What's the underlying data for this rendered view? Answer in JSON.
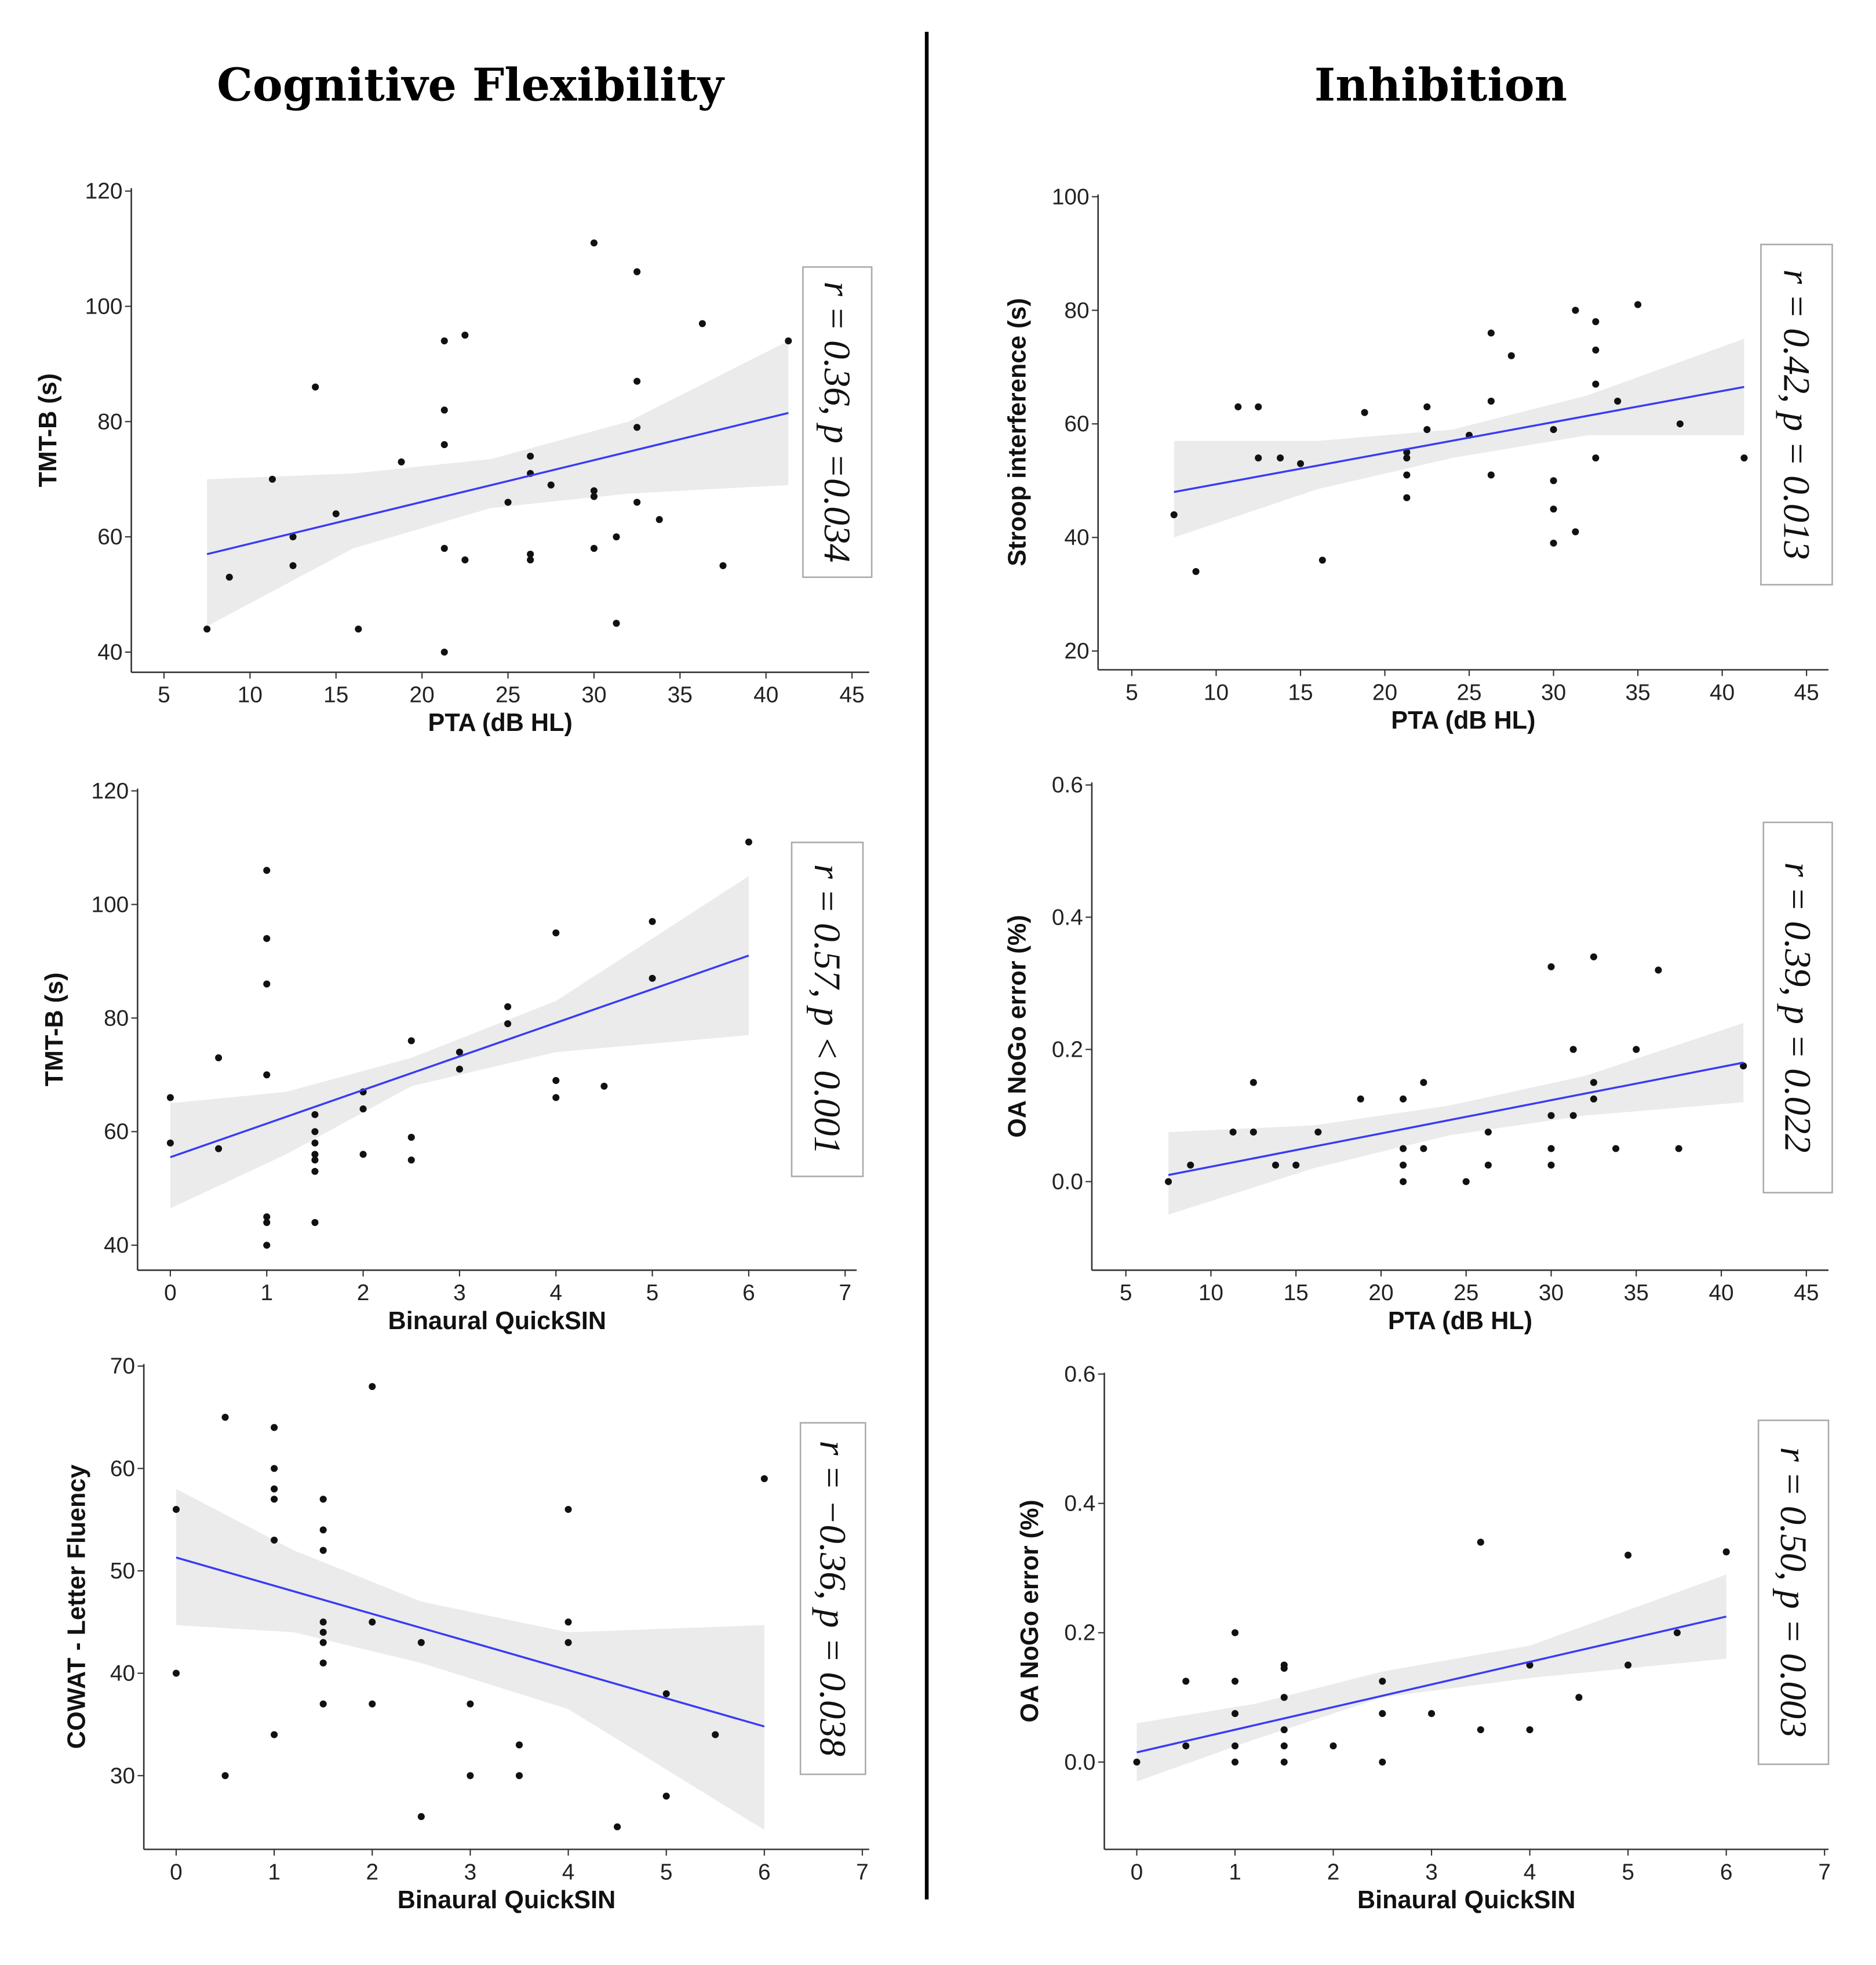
{
  "headers": {
    "left": "Cognitive Flexibility",
    "right": "Inhibition"
  },
  "colors": {
    "line": "#3a3af5",
    "ci": "#ebebeb",
    "point": "#111111",
    "axis": "#333333"
  },
  "chart_data": [
    {
      "id": "p1",
      "type": "scatter",
      "column": "Cognitive Flexibility",
      "xlabel": "PTA (dB HL)",
      "ylabel": "TMT-B (s)",
      "stat": "r = 0.36, p =0.034",
      "xlim": [
        3.1,
        46
      ],
      "ylim": [
        36.5,
        120.5
      ],
      "xticks": [
        5,
        10,
        15,
        20,
        25,
        30,
        35,
        40,
        45
      ],
      "xtick_labels": [
        "5",
        "10",
        "15",
        "20",
        "25",
        "30",
        "35",
        "40",
        "45"
      ],
      "yticks": [
        40,
        60,
        80,
        100,
        120
      ],
      "ytick_labels": [
        "40",
        "60",
        "80",
        "100",
        "120"
      ],
      "points": [
        [
          7.5,
          44
        ],
        [
          8.8,
          53
        ],
        [
          11.3,
          70
        ],
        [
          12.5,
          60
        ],
        [
          12.5,
          55
        ],
        [
          13.8,
          86
        ],
        [
          15,
          64
        ],
        [
          16.3,
          44
        ],
        [
          18.8,
          73
        ],
        [
          21.3,
          94
        ],
        [
          21.3,
          82
        ],
        [
          21.3,
          76
        ],
        [
          21.3,
          58
        ],
        [
          21.3,
          40
        ],
        [
          22.5,
          95
        ],
        [
          22.5,
          56
        ],
        [
          25,
          66
        ],
        [
          26.3,
          74
        ],
        [
          26.3,
          71
        ],
        [
          26.3,
          57
        ],
        [
          26.3,
          56
        ],
        [
          27.5,
          69
        ],
        [
          30,
          111
        ],
        [
          30,
          68
        ],
        [
          30,
          67
        ],
        [
          30,
          58
        ],
        [
          31.3,
          60
        ],
        [
          31.3,
          45
        ],
        [
          32.5,
          106
        ],
        [
          32.5,
          87
        ],
        [
          32.5,
          79
        ],
        [
          32.5,
          66
        ],
        [
          33.8,
          63
        ],
        [
          36.3,
          97
        ],
        [
          37.5,
          55
        ],
        [
          41.3,
          94
        ]
      ],
      "fit": [
        [
          7.5,
          57
        ],
        [
          41.3,
          81.5
        ]
      ],
      "ci_x": [
        7.5,
        16,
        24,
        32,
        41.3
      ],
      "ci_lower": [
        44.5,
        58,
        65,
        67.5,
        69
      ],
      "ci_upper": [
        70,
        71,
        73.5,
        80,
        94
      ]
    },
    {
      "id": "p2",
      "type": "scatter",
      "column": "Inhibition",
      "xlabel": "PTA (dB HL)",
      "ylabel": "Stroop interference (s)",
      "stat": "r = 0.42, p = 0.013",
      "xlim": [
        3.0,
        46.3
      ],
      "ylim": [
        16.7,
        100.4
      ],
      "xticks": [
        5,
        10,
        15,
        20,
        25,
        30,
        35,
        40,
        45
      ],
      "xtick_labels": [
        "5",
        "10",
        "15",
        "20",
        "25",
        "30",
        "35",
        "40",
        "45"
      ],
      "yticks": [
        20,
        40,
        60,
        80,
        100
      ],
      "ytick_labels": [
        "20",
        "40",
        "60",
        "80",
        "100"
      ],
      "points": [
        [
          7.5,
          44
        ],
        [
          8.8,
          34
        ],
        [
          11.3,
          63
        ],
        [
          12.5,
          63
        ],
        [
          12.5,
          54
        ],
        [
          13.8,
          54
        ],
        [
          15,
          53
        ],
        [
          16.3,
          36
        ],
        [
          18.8,
          62
        ],
        [
          21.3,
          55
        ],
        [
          21.3,
          54
        ],
        [
          21.3,
          51
        ],
        [
          21.3,
          47
        ],
        [
          22.5,
          63
        ],
        [
          22.5,
          59
        ],
        [
          25,
          58
        ],
        [
          26.3,
          76
        ],
        [
          26.3,
          64
        ],
        [
          26.3,
          51
        ],
        [
          27.5,
          72
        ],
        [
          30,
          59
        ],
        [
          30,
          50
        ],
        [
          30,
          45
        ],
        [
          30,
          39
        ],
        [
          31.3,
          80
        ],
        [
          31.3,
          41
        ],
        [
          32.5,
          78
        ],
        [
          32.5,
          73
        ],
        [
          32.5,
          67
        ],
        [
          32.5,
          54
        ],
        [
          33.8,
          64
        ],
        [
          35,
          81
        ],
        [
          37.5,
          60
        ],
        [
          41.3,
          54
        ]
      ],
      "fit": [
        [
          7.5,
          48
        ],
        [
          41.3,
          66.5
        ]
      ],
      "ci_x": [
        7.5,
        16,
        24,
        32,
        41.3
      ],
      "ci_lower": [
        40,
        48.5,
        54,
        58,
        58
      ],
      "ci_upper": [
        57,
        57,
        59,
        65,
        75
      ]
    },
    {
      "id": "p3",
      "type": "scatter",
      "column": "Cognitive Flexibility",
      "xlabel": "Binaural QuickSIN",
      "ylabel": "TMT-B (s)",
      "stat": "r = 0.57, p < 0.001",
      "xlim": [
        -0.34,
        7.12
      ],
      "ylim": [
        35.6,
        120.4
      ],
      "xticks": [
        0,
        1,
        2,
        3,
        4,
        5,
        6,
        7
      ],
      "xtick_labels": [
        "0",
        "1",
        "2",
        "3",
        "4",
        "5",
        "6",
        "7"
      ],
      "yticks": [
        40,
        60,
        80,
        100,
        120
      ],
      "ytick_labels": [
        "40",
        "60",
        "80",
        "100",
        "120"
      ],
      "points": [
        [
          0,
          66
        ],
        [
          0,
          58
        ],
        [
          0.5,
          73
        ],
        [
          0.5,
          57
        ],
        [
          1,
          106
        ],
        [
          1,
          94
        ],
        [
          1,
          86
        ],
        [
          1,
          70
        ],
        [
          1,
          45
        ],
        [
          1,
          44
        ],
        [
          1,
          40
        ],
        [
          1.5,
          63
        ],
        [
          1.5,
          60
        ],
        [
          1.5,
          58
        ],
        [
          1.5,
          56
        ],
        [
          1.5,
          55
        ],
        [
          1.5,
          53
        ],
        [
          1.5,
          44
        ],
        [
          2,
          67
        ],
        [
          2,
          64
        ],
        [
          2,
          56
        ],
        [
          2.5,
          76
        ],
        [
          2.5,
          59
        ],
        [
          2.5,
          55
        ],
        [
          3,
          74
        ],
        [
          3,
          71
        ],
        [
          3.5,
          82
        ],
        [
          3.5,
          79
        ],
        [
          4,
          95
        ],
        [
          4,
          69
        ],
        [
          4,
          66
        ],
        [
          4.5,
          68
        ],
        [
          5,
          97
        ],
        [
          5,
          87
        ],
        [
          6,
          111
        ]
      ],
      "fit": [
        [
          0,
          55.5
        ],
        [
          6,
          91
        ]
      ],
      "ci_x": [
        0,
        1.2,
        2.5,
        4,
        6
      ],
      "ci_lower": [
        46.5,
        56,
        68,
        74,
        77
      ],
      "ci_upper": [
        65,
        67,
        73,
        83,
        105
      ]
    },
    {
      "id": "p4",
      "type": "scatter",
      "column": "Inhibition",
      "xlabel": "PTA (dB HL)",
      "ylabel": "OA NoGo error (%)",
      "stat": "r = 0.39, p = 0.022",
      "xlim": [
        3.0,
        46.3
      ],
      "ylim": [
        -0.134,
        0.604
      ],
      "xticks": [
        5,
        10,
        15,
        20,
        25,
        30,
        35,
        40,
        45
      ],
      "xtick_labels": [
        "5",
        "10",
        "15",
        "20",
        "25",
        "30",
        "35",
        "40",
        "45"
      ],
      "yticks": [
        0,
        0.2,
        0.4,
        0.6
      ],
      "ytick_labels": [
        "0.0",
        "0.2",
        "0.4",
        "0.6"
      ],
      "points": [
        [
          7.5,
          0
        ],
        [
          8.8,
          0.025
        ],
        [
          11.3,
          0.075
        ],
        [
          12.5,
          0.15
        ],
        [
          12.5,
          0.075
        ],
        [
          13.8,
          0.025
        ],
        [
          15,
          0.025
        ],
        [
          16.3,
          0.075
        ],
        [
          18.8,
          0.125
        ],
        [
          21.3,
          0.125
        ],
        [
          21.3,
          0.05
        ],
        [
          21.3,
          0.025
        ],
        [
          21.3,
          0
        ],
        [
          22.5,
          0.15
        ],
        [
          22.5,
          0.05
        ],
        [
          25,
          0
        ],
        [
          26.3,
          0.075
        ],
        [
          26.3,
          0.025
        ],
        [
          30,
          0.325
        ],
        [
          30,
          0.1
        ],
        [
          30,
          0.05
        ],
        [
          30,
          0.025
        ],
        [
          31.3,
          0.2
        ],
        [
          31.3,
          0.1
        ],
        [
          32.5,
          0.34
        ],
        [
          32.5,
          0.15
        ],
        [
          32.5,
          0.125
        ],
        [
          33.8,
          0.05
        ],
        [
          35,
          0.2
        ],
        [
          36.3,
          0.32
        ],
        [
          37.5,
          0.05
        ],
        [
          41.3,
          0.175
        ]
      ],
      "fit": [
        [
          7.5,
          0.01
        ],
        [
          41.3,
          0.18
        ]
      ],
      "ci_x": [
        7.5,
        16,
        24,
        32,
        41.3
      ],
      "ci_lower": [
        -0.05,
        0.02,
        0.07,
        0.1,
        0.12
      ],
      "ci_upper": [
        0.075,
        0.085,
        0.115,
        0.16,
        0.24
      ]
    },
    {
      "id": "p5",
      "type": "scatter",
      "column": "Cognitive Flexibility",
      "xlabel": "Binaural QuickSIN",
      "ylabel": "COWAT - Letter Fluency",
      "stat": "r = −0.36, p = 0.038",
      "xlim": [
        -0.33,
        7.07
      ],
      "ylim": [
        22.8,
        70.2
      ],
      "xticks": [
        0,
        1,
        2,
        3,
        4,
        5,
        6,
        7
      ],
      "xtick_labels": [
        "0",
        "1",
        "2",
        "3",
        "4",
        "5",
        "6",
        "7"
      ],
      "yticks": [
        30,
        40,
        50,
        60,
        70
      ],
      "ytick_labels": [
        "30",
        "40",
        "50",
        "60",
        "70"
      ],
      "points": [
        [
          0,
          56
        ],
        [
          0,
          40
        ],
        [
          0.5,
          65
        ],
        [
          0.5,
          30
        ],
        [
          1,
          64
        ],
        [
          1,
          60
        ],
        [
          1,
          58
        ],
        [
          1,
          57
        ],
        [
          1,
          53
        ],
        [
          1,
          34
        ],
        [
          1.5,
          57
        ],
        [
          1.5,
          54
        ],
        [
          1.5,
          52
        ],
        [
          1.5,
          45
        ],
        [
          1.5,
          44
        ],
        [
          1.5,
          43
        ],
        [
          1.5,
          41
        ],
        [
          1.5,
          37
        ],
        [
          2,
          68
        ],
        [
          2,
          45
        ],
        [
          2,
          37
        ],
        [
          2.5,
          43
        ],
        [
          2.5,
          26
        ],
        [
          3,
          37
        ],
        [
          3,
          30
        ],
        [
          3.5,
          33
        ],
        [
          3.5,
          30
        ],
        [
          4,
          56
        ],
        [
          4,
          45
        ],
        [
          4,
          43
        ],
        [
          4.5,
          25
        ],
        [
          5,
          38
        ],
        [
          5,
          28
        ],
        [
          5.5,
          34
        ],
        [
          6,
          59
        ]
      ],
      "fit": [
        [
          0,
          51.3
        ],
        [
          6,
          34.8
        ]
      ],
      "ci_x": [
        0,
        1.2,
        2.5,
        4,
        6
      ],
      "ci_lower": [
        44.7,
        44,
        41,
        36.5,
        24.7
      ],
      "ci_upper": [
        58,
        52,
        47,
        44,
        44.7
      ]
    },
    {
      "id": "p6",
      "type": "scatter",
      "column": "Inhibition",
      "xlabel": "Binaural QuickSIN",
      "ylabel": "OA NoGo error (%)",
      "stat": "r = 0.50, p = 0.003",
      "xlim": [
        -0.33,
        7.04
      ],
      "ylim": [
        -0.135,
        0.602
      ],
      "xticks": [
        0,
        1,
        2,
        3,
        4,
        5,
        6,
        7
      ],
      "xtick_labels": [
        "0",
        "1",
        "2",
        "3",
        "4",
        "5",
        "6",
        "7"
      ],
      "yticks": [
        0,
        0.2,
        0.4,
        0.6
      ],
      "ytick_labels": [
        "0.0",
        "0.2",
        "0.4",
        "0.6"
      ],
      "points": [
        [
          0,
          0
        ],
        [
          0.5,
          0.125
        ],
        [
          0.5,
          0.025
        ],
        [
          1,
          0.2
        ],
        [
          1,
          0.125
        ],
        [
          1,
          0.075
        ],
        [
          1,
          0.025
        ],
        [
          1,
          0
        ],
        [
          1.5,
          0.15
        ],
        [
          1.5,
          0.145
        ],
        [
          1.5,
          0.1
        ],
        [
          1.5,
          0.05
        ],
        [
          1.5,
          0.025
        ],
        [
          1.5,
          0
        ],
        [
          2,
          0.025
        ],
        [
          2.5,
          0.125
        ],
        [
          2.5,
          0.075
        ],
        [
          2.5,
          0
        ],
        [
          3,
          0.075
        ],
        [
          3.5,
          0.34
        ],
        [
          3.5,
          0.05
        ],
        [
          4,
          0.15
        ],
        [
          4,
          0.05
        ],
        [
          4.5,
          0.1
        ],
        [
          5,
          0.32
        ],
        [
          5,
          0.15
        ],
        [
          5.5,
          0.2
        ],
        [
          6,
          0.325
        ]
      ],
      "fit": [
        [
          0,
          0.015
        ],
        [
          6,
          0.225
        ]
      ],
      "ci_x": [
        0,
        1.2,
        2.5,
        4,
        6
      ],
      "ci_lower": [
        -0.03,
        0.035,
        0.1,
        0.13,
        0.16
      ],
      "ci_upper": [
        0.06,
        0.09,
        0.14,
        0.18,
        0.29
      ]
    }
  ]
}
